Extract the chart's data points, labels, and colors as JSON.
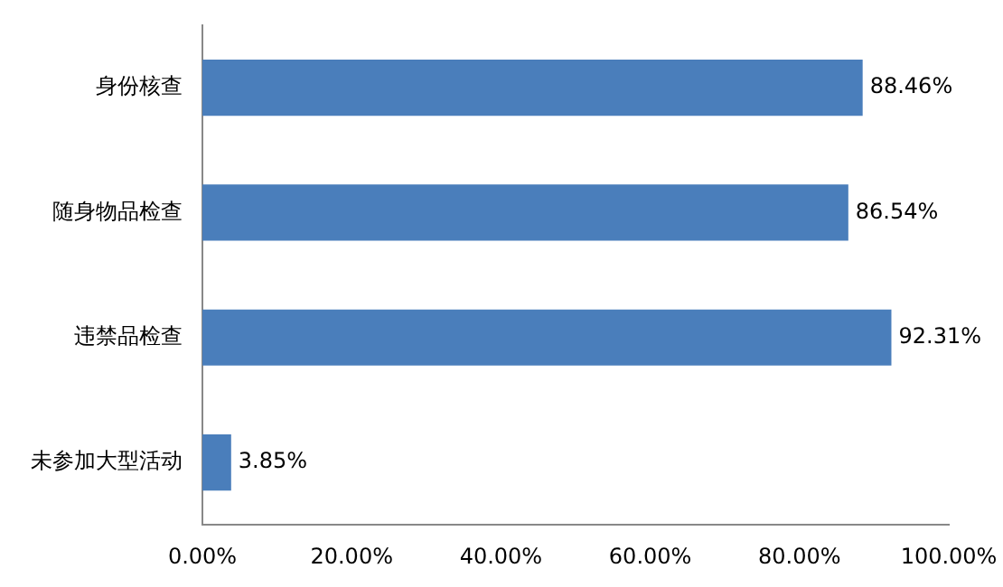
{
  "chart_data": {
    "type": "bar",
    "orientation": "horizontal",
    "categories": [
      "身份核查",
      "随身物品检查",
      "违禁品检查",
      "未参加大型活动"
    ],
    "values": [
      88.46,
      86.54,
      92.31,
      3.85
    ],
    "value_labels": [
      "88.46%",
      "86.54%",
      "92.31%",
      "3.85%"
    ],
    "color": "#4a7ebb",
    "xlim": [
      0,
      100
    ],
    "xticks": [
      {
        "value": 0,
        "label": "0.00%"
      },
      {
        "value": 20,
        "label": "20.00%"
      },
      {
        "value": 40,
        "label": "40.00%"
      },
      {
        "value": 60,
        "label": "60.00%"
      },
      {
        "value": 80,
        "label": "80.00%"
      },
      {
        "value": 100,
        "label": "100.00%"
      }
    ],
    "grid": false,
    "legend": false
  }
}
